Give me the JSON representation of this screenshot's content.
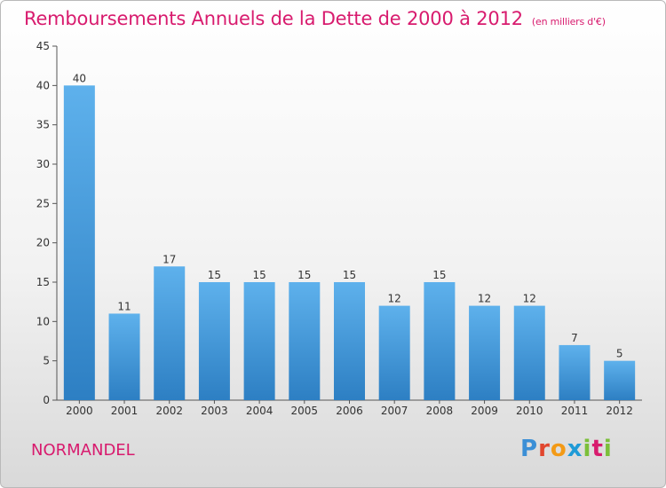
{
  "header": {
    "title": "Remboursements Annuels de la Dette de 2000 à 2012",
    "unit": "(en milliers d'€)"
  },
  "footer": {
    "city": "NORMANDEL",
    "logo": "Proxiti"
  },
  "colors": {
    "title": "#d81b6e",
    "bar_top": "#5eb1ec",
    "bar_bottom": "#2d7fc3"
  },
  "chart_data": {
    "type": "bar",
    "title": "Remboursements Annuels de la Dette de 2000 à 2012",
    "subtitle": "(en milliers d'€)",
    "categories": [
      "2000",
      "2001",
      "2002",
      "2003",
      "2004",
      "2005",
      "2006",
      "2007",
      "2008",
      "2009",
      "2010",
      "2011",
      "2012"
    ],
    "values": [
      40,
      11,
      17,
      15,
      15,
      15,
      15,
      12,
      15,
      12,
      12,
      7,
      5
    ],
    "ylim": [
      0,
      45
    ],
    "yticks": [
      0,
      5,
      10,
      15,
      20,
      25,
      30,
      35,
      40,
      45
    ],
    "grid": false,
    "legend": "none"
  }
}
